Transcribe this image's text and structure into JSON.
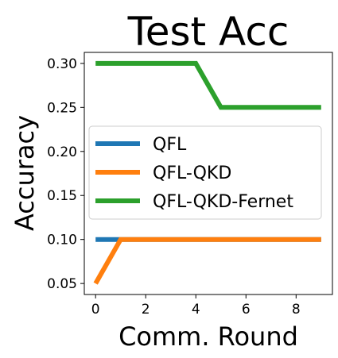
{
  "chart_data": {
    "type": "line",
    "title": "Test Acc",
    "xlabel": "Comm. Round",
    "ylabel": "Accuracy",
    "xlim": [
      -0.45,
      9.45
    ],
    "ylim": [
      0.0375,
      0.3125
    ],
    "xticks": [
      0,
      2,
      4,
      6,
      8
    ],
    "xtick_labels": [
      "0",
      "2",
      "4",
      "6",
      "8"
    ],
    "yticks": [
      0.05,
      0.1,
      0.15,
      0.2,
      0.25,
      0.3
    ],
    "ytick_labels": [
      "0.05",
      "0.10",
      "0.15",
      "0.20",
      "0.25",
      "0.30"
    ],
    "grid": false,
    "legend_position": "center-left",
    "x": [
      0,
      1,
      2,
      3,
      4,
      5,
      6,
      7,
      8,
      9
    ],
    "series": [
      {
        "name": "QFL",
        "color": "#1f77b4",
        "values": [
          0.1,
          0.1,
          0.1,
          0.1,
          0.1,
          0.1,
          0.1,
          0.1,
          0.1,
          0.1
        ]
      },
      {
        "name": "QFL-QKD",
        "color": "#ff7f0e",
        "values": [
          0.05,
          0.1,
          0.1,
          0.1,
          0.1,
          0.1,
          0.1,
          0.1,
          0.1,
          0.1
        ]
      },
      {
        "name": "QFL-QKD-Fernet",
        "color": "#2ca02c",
        "values": [
          0.3,
          0.3,
          0.3,
          0.3,
          0.3,
          0.25,
          0.25,
          0.25,
          0.25,
          0.25
        ]
      }
    ]
  }
}
